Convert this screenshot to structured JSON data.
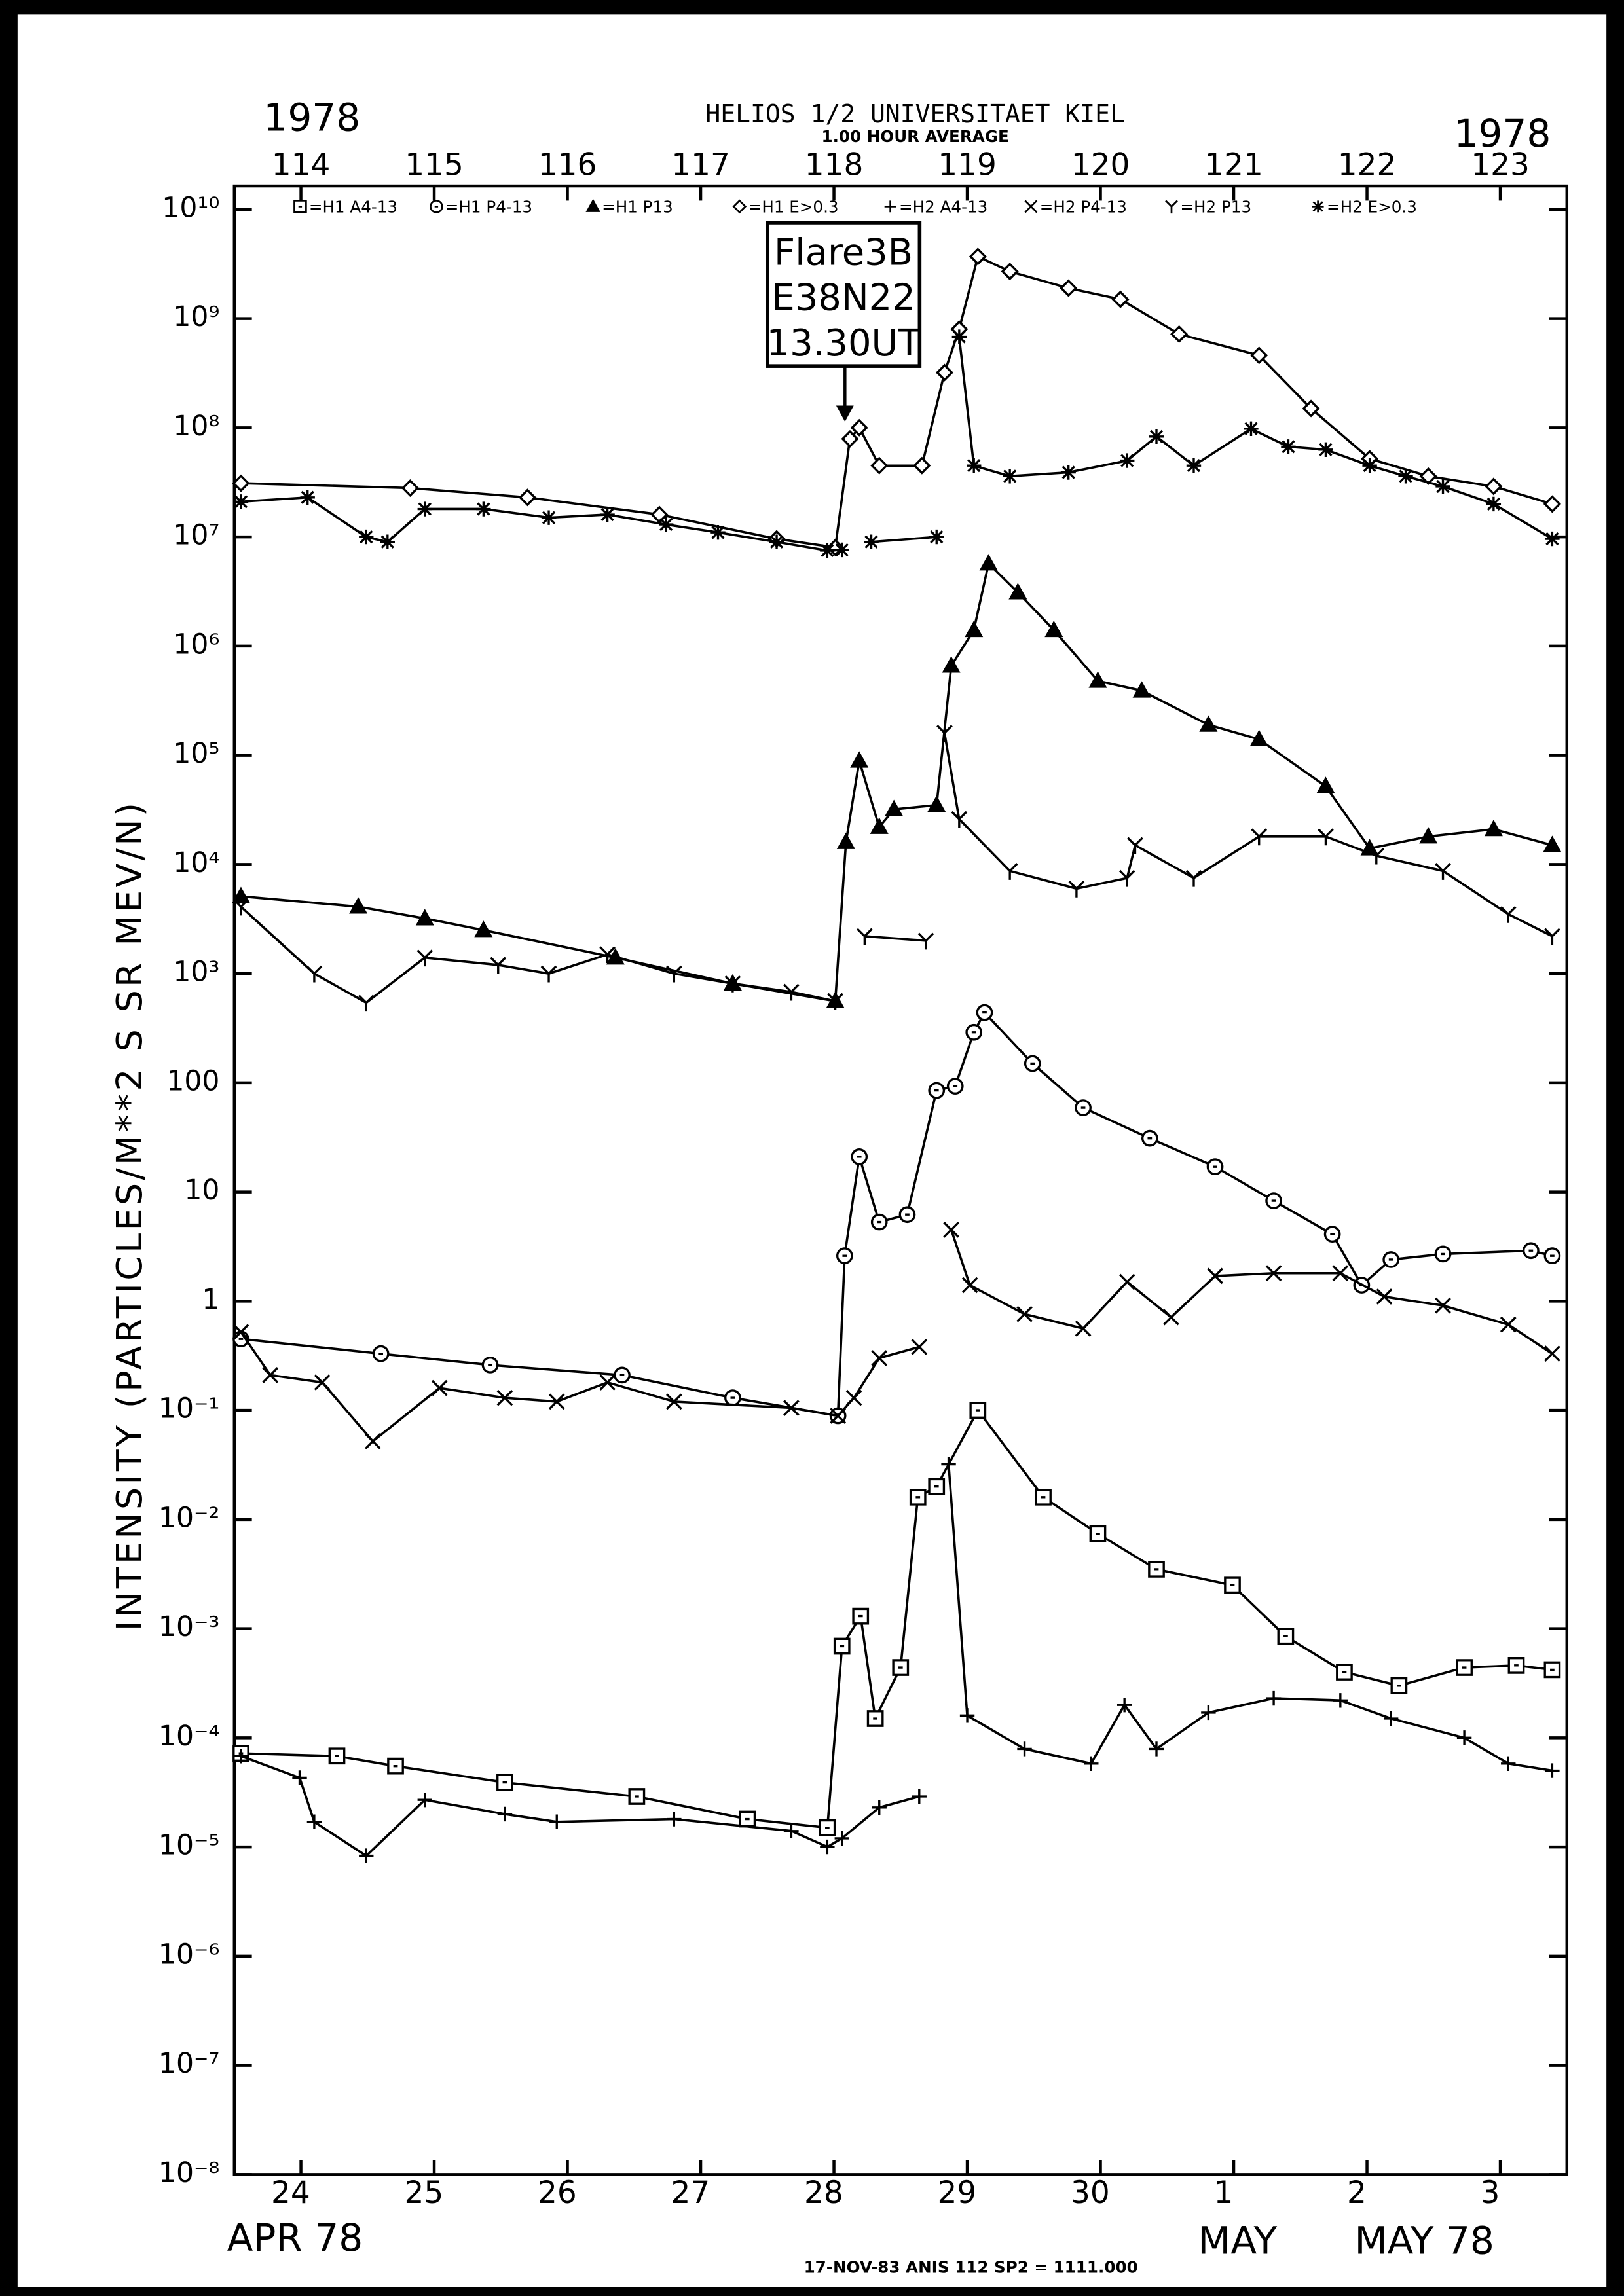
{
  "chart_data": {
    "type": "line",
    "title": "HELIOS 1/2  UNIVERSITAET KIEL",
    "subtitle": "1.00 HOUR AVERAGE",
    "year_labels": [
      "1978",
      "1978"
    ],
    "month_labels": [
      "APR 78",
      "MAY",
      "MAY 78"
    ],
    "footer": "17-NOV-83 ANIS 112 SP2 = 1111.000",
    "y_label": "INTENSITY (PARTICLES/M**2 S SR MEV/N)",
    "annotations": [
      "Flare3B",
      "E38N22",
      "13.30UT"
    ],
    "yscale": "log",
    "xlim": [
      113.5,
      123.5
    ],
    "ylim": [
      1e-08,
      10000000000.0
    ],
    "xticks": [
      {
        "value": 114,
        "label": "24"
      },
      {
        "value": 115,
        "label": "25"
      },
      {
        "value": 116,
        "label": "26"
      },
      {
        "value": 117,
        "label": "27"
      },
      {
        "value": 118,
        "label": "28"
      },
      {
        "value": 119,
        "label": "29"
      },
      {
        "value": 120,
        "label": "30"
      },
      {
        "value": 121,
        "label": "1"
      },
      {
        "value": 122,
        "label": "2"
      },
      {
        "value": 123,
        "label": "3"
      }
    ],
    "x2ticks": [
      114,
      115,
      116,
      117,
      118,
      119,
      120,
      121,
      122,
      123
    ],
    "yticks": [
      {
        "value": 10000000000.0,
        "label": "10¹⁰"
      },
      {
        "value": 1000000000.0,
        "label": "10⁹"
      },
      {
        "value": 100000000.0,
        "label": "10⁸"
      },
      {
        "value": 10000000.0,
        "label": "10⁷"
      },
      {
        "value": 1000000.0,
        "label": "10⁶"
      },
      {
        "value": 100000.0,
        "label": "10⁵"
      },
      {
        "value": 10000.0,
        "label": "10⁴"
      },
      {
        "value": 1000.0,
        "label": "10³"
      },
      100,
      10,
      1,
      {
        "value": 0.1,
        "label": "10⁻¹"
      },
      {
        "value": 0.01,
        "label": "10⁻²"
      },
      {
        "value": 0.001,
        "label": "10⁻³"
      },
      {
        "value": 0.0001,
        "label": "10⁻⁴"
      },
      {
        "value": 1e-05,
        "label": "10⁻⁵"
      },
      {
        "value": 1e-06,
        "label": "10⁻⁶"
      },
      {
        "value": 1e-07,
        "label": "10⁻⁷"
      },
      {
        "value": 1e-08,
        "label": "10⁻⁸"
      }
    ],
    "series": [
      {
        "name": "=H1 A4-13",
        "marker": "square",
        "color": "#000",
        "x": [
          113.55,
          114.27,
          114.71,
          115.53,
          116.52,
          117.35,
          117.95,
          118.06,
          118.2,
          118.31,
          118.5,
          118.63,
          118.77,
          119.08,
          119.57,
          119.98,
          120.42,
          120.99,
          121.39,
          121.83,
          122.24,
          122.73,
          123.12,
          123.39
        ],
        "values": [
          7.2e-05,
          6.8e-05,
          5.5e-05,
          3.9e-05,
          2.9e-05,
          1.8e-05,
          1.5e-05,
          0.00069,
          0.0013,
          0.00015,
          0.00044,
          0.016,
          0.02,
          0.1,
          0.016,
          0.0074,
          0.0035,
          0.0025,
          0.00085,
          0.0004,
          0.0003,
          0.00044,
          0.00046,
          0.00042
        ]
      },
      {
        "name": "=H1 P4-13",
        "marker": "circle",
        "color": "#000",
        "x": [
          113.55,
          114.6,
          115.42,
          116.41,
          117.24,
          118.03,
          118.08,
          118.19,
          118.34,
          118.55,
          118.77,
          118.91,
          119.05,
          119.13,
          119.49,
          119.87,
          120.37,
          120.86,
          121.3,
          121.74,
          121.96,
          122.18,
          122.57,
          123.23,
          123.39
        ],
        "values": [
          0.45,
          0.33,
          0.26,
          0.21,
          0.13,
          0.089,
          2.6,
          21,
          5.3,
          6.2,
          85,
          93,
          290,
          440,
          150,
          59,
          31,
          17,
          8.3,
          4.1,
          1.4,
          2.4,
          2.7,
          2.9,
          2.6
        ]
      },
      {
        "name": "=H1 P13",
        "marker": "triangle",
        "color": "#000",
        "x": [
          113.55,
          114.43,
          114.93,
          115.37,
          116.36,
          117.24,
          118.01,
          118.09,
          118.19,
          118.34,
          118.45,
          118.77,
          118.88,
          119.05,
          119.16,
          119.38,
          119.65,
          119.98,
          120.31,
          120.81,
          121.19,
          121.69,
          122.02,
          122.46,
          122.95,
          123.39
        ],
        "values": [
          5100,
          4100,
          3200,
          2500,
          1400,
          810,
          560,
          16000,
          89000,
          22000,
          32000,
          35000,
          660000,
          1400000,
          5700000,
          3100000,
          1400000,
          480000,
          390000,
          190000,
          140000,
          52000,
          14000,
          18000,
          21000,
          15000
        ]
      },
      {
        "name": "=H1 E>0.3",
        "marker": "diamond",
        "color": "#000",
        "x": [
          113.55,
          114.82,
          115.7,
          116.69,
          117.57,
          118.01,
          118.12,
          118.19,
          118.34,
          118.66,
          118.83,
          118.94,
          119.08,
          119.32,
          119.76,
          120.15,
          120.59,
          121.19,
          121.58,
          122.02,
          122.46,
          122.95,
          123.39
        ],
        "values": [
          31000000.0,
          28000000.0,
          23000000.0,
          16000000.0,
          9600000.0,
          8000000.0,
          79000000.0,
          100000000.0,
          45000000.0,
          45000000.0,
          320000000.0,
          800000000.0,
          3700000000.0,
          2700000000.0,
          1900000000.0,
          1500000000.0,
          720000000.0,
          460000000.0,
          150000000.0,
          52000000.0,
          36000000.0,
          29000000.0,
          20000000.0
        ]
      },
      {
        "name": "=H2 A4-13",
        "marker": "plus",
        "color": "#000",
        "x": [
          113.55,
          113.99,
          114.1,
          114.49,
          114.93,
          115.53,
          115.92,
          116.8,
          117.68,
          117.95,
          118.06,
          118.34,
          118.64,
          118.75,
          118.86,
          119.0,
          119.43,
          119.93,
          120.18,
          120.42,
          120.81,
          121.3,
          121.8,
          122.18,
          122.73,
          123.06,
          123.39
        ],
        "values": [
          6.8e-05,
          4.3e-05,
          1.7e-05,
          8.3e-06,
          2.7e-05,
          2e-05,
          1.7e-05,
          1.8e-05,
          1.4e-05,
          1e-05,
          1.2e-05,
          2.3e-05,
          2.9e-05,
          null,
          0.032,
          0.00016,
          7.9e-05,
          5.8e-05,
          0.0002,
          7.9e-05,
          0.00017,
          0.00023,
          0.00022,
          0.00015,
          0.0001,
          5.8e-05,
          5e-05
        ]
      },
      {
        "name": "=H2 P4-13",
        "marker": "cross",
        "color": "#000",
        "x": [
          113.55,
          113.77,
          114.16,
          114.54,
          115.04,
          115.53,
          115.92,
          116.3,
          116.8,
          117.68,
          118.03,
          118.15,
          118.34,
          118.64,
          118.76,
          118.88,
          119.02,
          119.43,
          119.87,
          120.2,
          120.53,
          120.86,
          121.3,
          121.8,
          122.13,
          122.57,
          123.06,
          123.39
        ],
        "values": [
          0.52,
          0.21,
          0.18,
          0.052,
          0.16,
          0.13,
          0.12,
          0.18,
          0.12,
          0.105,
          0.089,
          0.13,
          0.3,
          0.38,
          null,
          4.5,
          1.4,
          0.76,
          0.56,
          1.5,
          0.71,
          1.7,
          1.8,
          1.8,
          1.1,
          0.91,
          0.61,
          0.33
        ]
      },
      {
        "name": "=H2 P13",
        "marker": "y",
        "color": "#000",
        "x": [
          113.55,
          114.1,
          114.49,
          114.93,
          115.48,
          115.86,
          116.3,
          116.8,
          117.24,
          117.68,
          118.01,
          118.12,
          118.23,
          118.69,
          118.76,
          118.83,
          118.94,
          119.32,
          119.82,
          120.2,
          120.26,
          120.7,
          121.19,
          121.69,
          122.07,
          122.57,
          123.06,
          123.39
        ],
        "values": [
          4100,
          1000,
          540,
          1400,
          1200,
          1000,
          1500,
          1000,
          810,
          680,
          560,
          null,
          2200,
          2000,
          null,
          160000,
          26000,
          8700,
          6000,
          7500,
          15000,
          7500,
          18000,
          18000,
          12000,
          8700,
          3500,
          2200
        ]
      },
      {
        "name": "=H2 E>0.3",
        "marker": "asterisk",
        "color": "#000",
        "x": [
          113.55,
          114.05,
          114.49,
          114.65,
          114.93,
          115.37,
          115.86,
          116.3,
          116.74,
          117.13,
          117.57,
          117.95,
          118.06,
          118.17,
          118.28,
          118.77,
          118.86,
          118.94,
          119.05,
          119.32,
          119.76,
          120.2,
          120.42,
          120.7,
          121.13,
          121.41,
          121.69,
          122.02,
          122.29,
          122.57,
          122.95,
          123.39
        ],
        "values": [
          21000000.0,
          23000000.0,
          10000000.0,
          9000000.0,
          18000000.0,
          18000000.0,
          15000000.0,
          16000000.0,
          13000000.0,
          11000000.0,
          9000000.0,
          7500000.0,
          7600000.0,
          null,
          9000000.0,
          10000000.0,
          null,
          680000000.0,
          45000000.0,
          36000000.0,
          39000000.0,
          50000000.0,
          83000000.0,
          45000000.0,
          98000000.0,
          67000000.0,
          63000000.0,
          45000000.0,
          36000000.0,
          29000000.0,
          20000000.0,
          9600000.0
        ]
      }
    ]
  }
}
